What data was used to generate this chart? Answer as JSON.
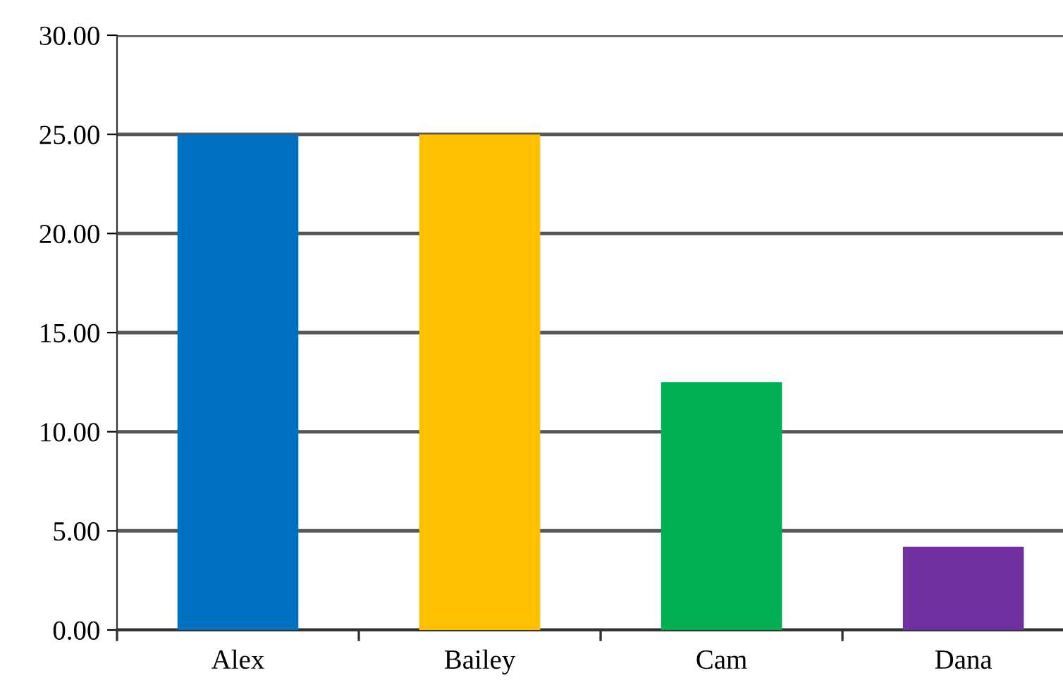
{
  "chart_data": {
    "type": "bar",
    "categories": [
      "Alex",
      "Bailey",
      "Cam",
      "Dana"
    ],
    "values": [
      25,
      25,
      12.5,
      4.2
    ],
    "colors": [
      "#0070c0",
      "#ffc000",
      "#00b050",
      "#7030a0"
    ],
    "ylim": [
      0,
      30
    ],
    "yticks": [
      {
        "value": 0,
        "label": "0.00"
      },
      {
        "value": 5,
        "label": "5.00"
      },
      {
        "value": 10,
        "label": "10.00"
      },
      {
        "value": 15,
        "label": "15.00"
      },
      {
        "value": 20,
        "label": "20.00"
      },
      {
        "value": 25,
        "label": "25.00"
      },
      {
        "value": 30,
        "label": "30.00"
      }
    ],
    "grid": "y",
    "legend": false
  }
}
